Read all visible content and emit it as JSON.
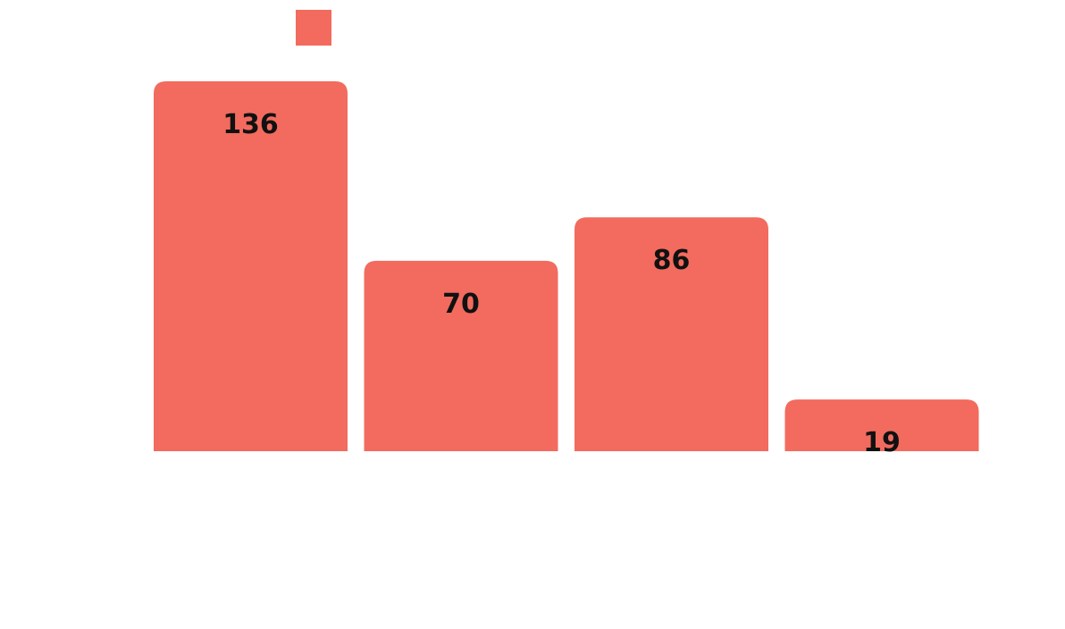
{
  "chart_data": {
    "type": "bar",
    "categories": [
      "",
      "",
      "",
      ""
    ],
    "series": [
      {
        "values": [
          136,
          70,
          86,
          19
        ],
        "color": "#f26b5e"
      }
    ],
    "data_labels": [
      "136",
      "70",
      "86",
      "19"
    ],
    "legend": {
      "position": "top-left",
      "entries": [
        {
          "color": "#f26b5e"
        }
      ]
    },
    "ylim": [
      0,
      136
    ],
    "grid": false,
    "title": "",
    "xlabel": "",
    "ylabel": ""
  }
}
